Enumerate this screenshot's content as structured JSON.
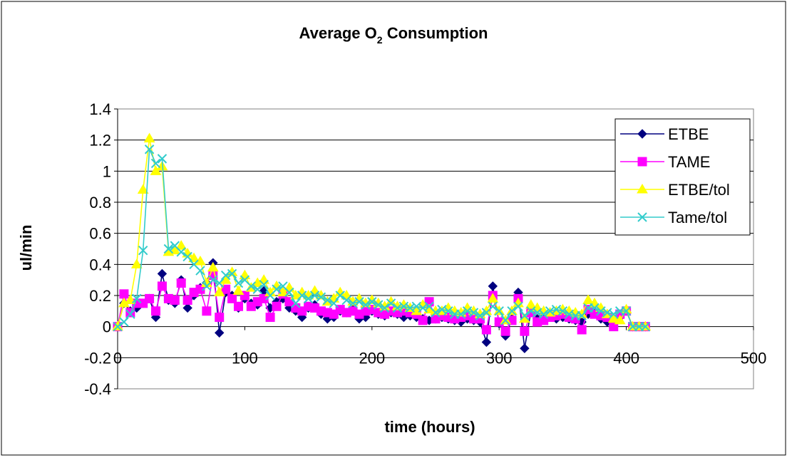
{
  "chart_data": {
    "type": "line",
    "title_main": "Average O",
    "title_sub": "2",
    "title_tail": " Consumption",
    "xlabel": "time (hours)",
    "ylabel": "ul/min",
    "xlim": [
      0,
      500
    ],
    "ylim": [
      -0.4,
      1.4
    ],
    "x_ticks": [
      "0",
      "100",
      "200",
      "300",
      "400",
      "500"
    ],
    "y_ticks": [
      "-0.4",
      "-0.2",
      "0",
      "0.2",
      "0.4",
      "0.6",
      "0.8",
      "1",
      "1.2",
      "1.4"
    ],
    "grid": "horizontal",
    "legend_position": "top-right",
    "x": [
      0,
      5,
      10,
      15,
      20,
      25,
      30,
      35,
      40,
      45,
      50,
      55,
      60,
      65,
      70,
      75,
      80,
      85,
      90,
      95,
      100,
      105,
      110,
      115,
      120,
      125,
      130,
      135,
      140,
      145,
      150,
      155,
      160,
      165,
      170,
      175,
      180,
      185,
      190,
      195,
      200,
      205,
      210,
      215,
      220,
      225,
      230,
      235,
      240,
      245,
      250,
      255,
      260,
      265,
      270,
      275,
      280,
      285,
      290,
      295,
      300,
      305,
      310,
      315,
      320,
      325,
      330,
      335,
      340,
      345,
      350,
      355,
      360,
      365,
      370,
      375,
      380,
      385,
      390,
      395,
      400,
      405,
      410,
      415
    ],
    "series": [
      {
        "name": "ETBE",
        "color": "#000080",
        "marker": "diamond",
        "values": [
          0,
          0.15,
          0.1,
          0.12,
          0.15,
          0.18,
          0.06,
          0.34,
          0.17,
          0.15,
          0.3,
          0.12,
          0.2,
          0.25,
          0.28,
          0.41,
          -0.04,
          0.22,
          0.2,
          0.12,
          0.18,
          0.15,
          0.14,
          0.23,
          0.12,
          0.16,
          0.18,
          0.12,
          0.1,
          0.06,
          0.12,
          0.14,
          0.08,
          0.05,
          0.06,
          0.1,
          0.09,
          0.11,
          0.05,
          0.06,
          0.1,
          0.08,
          0.07,
          0.09,
          0.08,
          0.06,
          0.07,
          0.06,
          0.05,
          0.04,
          0.05,
          0.06,
          0.05,
          0.04,
          0.03,
          0.05,
          0.04,
          0.03,
          -0.1,
          0.26,
          0.02,
          -0.06,
          0.05,
          0.22,
          -0.14,
          0.1,
          0.05,
          0.07,
          0.08,
          0.05,
          0.06,
          0.05,
          0.04,
          0.03,
          0.08,
          0.1,
          0.05,
          0.03,
          0.02,
          0.06,
          0.1,
          0,
          0,
          0
        ]
      },
      {
        "name": "TAME",
        "color": "#ff00ff",
        "marker": "square",
        "values": [
          0,
          0.21,
          0.09,
          0.15,
          0.15,
          0.18,
          0.1,
          0.26,
          0.18,
          0.17,
          0.28,
          0.17,
          0.22,
          0.24,
          0.1,
          0.33,
          0.06,
          0.24,
          0.18,
          0.13,
          0.2,
          0.13,
          0.16,
          0.18,
          0.06,
          0.13,
          0.21,
          0.16,
          0.12,
          0.1,
          0.13,
          0.12,
          0.1,
          0.09,
          0.08,
          0.11,
          0.09,
          0.1,
          0.08,
          0.1,
          0.11,
          0.09,
          0.08,
          0.1,
          0.09,
          0.1,
          0.09,
          0.08,
          0.04,
          0.16,
          0.05,
          0.07,
          0.06,
          0.05,
          0.06,
          0.07,
          0.05,
          0.05,
          -0.02,
          0.2,
          0.03,
          -0.03,
          0.04,
          0.18,
          -0.03,
          0.09,
          0.03,
          0.04,
          0.06,
          0.07,
          0.08,
          0.06,
          0.05,
          -0.02,
          0.11,
          0.08,
          0.07,
          0.06,
          0,
          0.08,
          0.1,
          0,
          0,
          0
        ]
      },
      {
        "name": "ETBE/tol",
        "color": "#ffff00",
        "marker": "triangle",
        "values": [
          0,
          0.15,
          0.17,
          0.4,
          0.88,
          1.21,
          1.0,
          1.03,
          0.48,
          0.49,
          0.52,
          0.47,
          0.44,
          0.42,
          0.28,
          0.38,
          0.22,
          0.3,
          0.35,
          0.23,
          0.33,
          0.25,
          0.28,
          0.3,
          0.22,
          0.26,
          0.22,
          0.25,
          0.2,
          0.22,
          0.2,
          0.23,
          0.2,
          0.16,
          0.18,
          0.22,
          0.2,
          0.16,
          0.18,
          0.15,
          0.17,
          0.15,
          0.13,
          0.16,
          0.13,
          0.14,
          0.12,
          0.1,
          0.14,
          0.11,
          0.1,
          0.1,
          0.12,
          0.1,
          0.09,
          0.12,
          0.1,
          0.08,
          0.1,
          0.18,
          0.1,
          0.04,
          0.1,
          0.15,
          0.05,
          0.14,
          0.12,
          0.1,
          0.09,
          0.1,
          0.11,
          0.1,
          0.09,
          0.08,
          0.17,
          0.15,
          0.12,
          0.08,
          0.05,
          0.04,
          0.11,
          0,
          0,
          0
        ]
      },
      {
        "name": "Tame/tol",
        "color": "#33cccc",
        "marker": "cross",
        "values": [
          0,
          0.03,
          0.08,
          0.18,
          0.49,
          1.14,
          1.05,
          1.08,
          0.5,
          0.52,
          0.48,
          0.45,
          0.4,
          0.36,
          0.26,
          0.3,
          0.28,
          0.33,
          0.34,
          0.28,
          0.3,
          0.26,
          0.24,
          0.27,
          0.2,
          0.24,
          0.26,
          0.22,
          0.15,
          0.2,
          0.18,
          0.2,
          0.19,
          0.17,
          0.15,
          0.2,
          0.17,
          0.15,
          0.16,
          0.14,
          0.16,
          0.14,
          0.12,
          0.15,
          0.12,
          0.13,
          0.12,
          0.13,
          0.12,
          0.13,
          0.09,
          0.11,
          0.1,
          0.08,
          0.08,
          0.1,
          0.09,
          0.07,
          0.09,
          0.13,
          0.1,
          0.04,
          0.1,
          0.13,
          0.07,
          0.1,
          0.09,
          0.08,
          0.1,
          0.11,
          0.1,
          0.08,
          0.07,
          0.07,
          0.12,
          0.12,
          0.1,
          0.09,
          0.08,
          0.1,
          0.1,
          0,
          0,
          0
        ]
      }
    ]
  }
}
